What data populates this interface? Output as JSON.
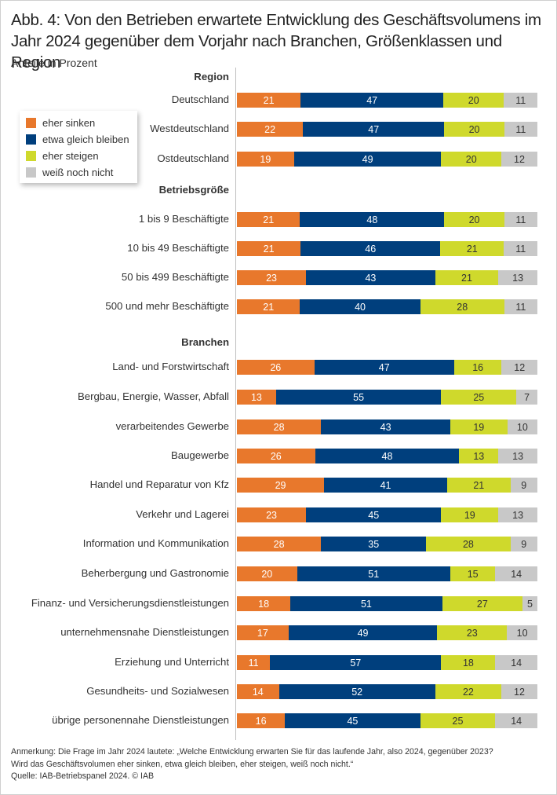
{
  "chart_data": {
    "type": "bar",
    "orientation": "horizontal",
    "stacked": "100%",
    "title": "Abb. 4: Von den Betrieben erwartete Entwicklung des Geschäftsvolumens im Jahr 2024 gegenüber dem Vorjahr nach Branchen, Größenklassen und Region",
    "subtitle": "Anteile in Prozent",
    "xlabel": "",
    "ylabel": "",
    "xlim": [
      0,
      100
    ],
    "grid": false,
    "legend_position": "left",
    "series_meta": [
      {
        "name": "eher sinken",
        "color": "#e8782c",
        "text": "light"
      },
      {
        "name": "etwa gleich bleiben",
        "color": "#003f7d",
        "text": "light"
      },
      {
        "name": "eher steigen",
        "color": "#cfd92c",
        "text": "dark"
      },
      {
        "name": "weiß noch nicht",
        "color": "#c8c8c8",
        "text": "dark"
      }
    ],
    "groups": [
      {
        "name": "Region",
        "rows": [
          {
            "label": "Deutschland",
            "values": [
              21,
              47,
              20,
              11
            ]
          },
          {
            "label": "Westdeutschland",
            "values": [
              22,
              47,
              20,
              11
            ]
          },
          {
            "label": "Ostdeutschland",
            "values": [
              19,
              49,
              20,
              12
            ]
          }
        ]
      },
      {
        "name": "Betriebsgröße",
        "rows": [
          {
            "label": "1 bis 9 Beschäftigte",
            "values": [
              21,
              48,
              20,
              11
            ]
          },
          {
            "label": "10 bis 49 Beschäftigte",
            "values": [
              21,
              46,
              21,
              11
            ]
          },
          {
            "label": "50 bis 499 Beschäftigte",
            "values": [
              23,
              43,
              21,
              13
            ]
          },
          {
            "label": "500 und mehr Beschäftigte",
            "values": [
              21,
              40,
              28,
              11
            ]
          }
        ]
      },
      {
        "name": "Branchen",
        "rows": [
          {
            "label": "Land- und Forstwirtschaft",
            "values": [
              26,
              47,
              16,
              12
            ]
          },
          {
            "label": "Bergbau, Energie, Wasser, Abfall",
            "values": [
              13,
              55,
              25,
              7
            ]
          },
          {
            "label": "verarbeitendes Gewerbe",
            "values": [
              28,
              43,
              19,
              10
            ]
          },
          {
            "label": "Baugewerbe",
            "values": [
              26,
              48,
              13,
              13
            ]
          },
          {
            "label": "Handel und Reparatur von Kfz",
            "values": [
              29,
              41,
              21,
              9
            ]
          },
          {
            "label": "Verkehr und Lagerei",
            "values": [
              23,
              45,
              19,
              13
            ]
          },
          {
            "label": "Information und Kommunikation",
            "values": [
              28,
              35,
              28,
              9
            ]
          },
          {
            "label": "Beherbergung und Gastronomie",
            "values": [
              20,
              51,
              15,
              14
            ]
          },
          {
            "label": "Finanz- und Versicherungsdienstleistungen",
            "values": [
              18,
              51,
              27,
              5
            ]
          },
          {
            "label": "unternehmensnahe Dienstleistungen",
            "values": [
              17,
              49,
              23,
              10
            ]
          },
          {
            "label": "Erziehung und Unterricht",
            "values": [
              11,
              57,
              18,
              14
            ]
          },
          {
            "label": "Gesundheits- und Sozialwesen",
            "values": [
              14,
              52,
              22,
              12
            ]
          },
          {
            "label": "übrige personennahe Dienstleistungen",
            "values": [
              16,
              45,
              25,
              14
            ]
          }
        ]
      }
    ]
  },
  "footer": {
    "note_line1": "Anmerkung: Die Frage im Jahr 2024 lautete: „Welche Entwicklung erwarten Sie für das laufende Jahr, also 2024, gegenüber 2023?",
    "note_line2": "Wird das Geschäftsvolumen eher sinken, etwa gleich bleiben, eher steigen, weiß noch nicht.“",
    "source": "Quelle: IAB-Betriebspanel 2024.  © IAB"
  }
}
